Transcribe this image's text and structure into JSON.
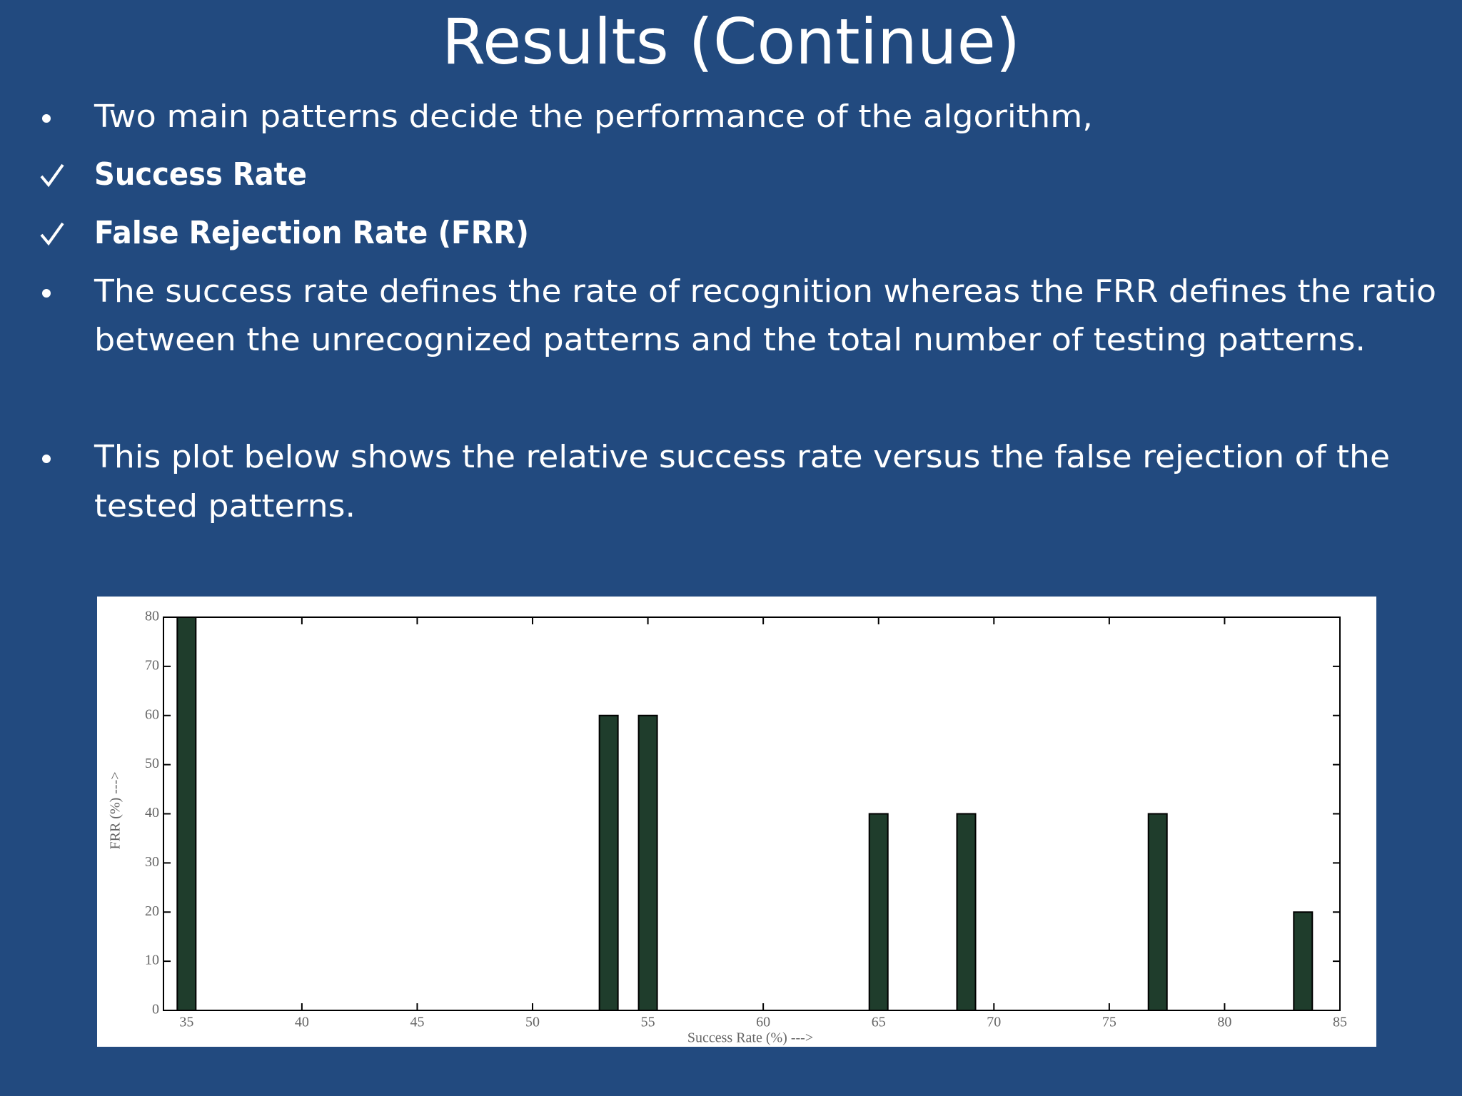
{
  "slide": {
    "title": "Results (Continue)",
    "bullets": [
      {
        "lines": [
          "Two main patterns decide the performance of the algorithm,"
        ]
      },
      {
        "lines": [
          "Success Rate"
        ]
      },
      {
        "lines": [
          "False Rejection Rate (FRR)"
        ]
      },
      {
        "lines": [
          "The success rate defines the rate of recognition whereas the FRR defines the ratio",
          "between the unrecognized patterns and the total number of testing patterns."
        ]
      },
      {
        "lines": [
          "This plot below shows the relative success rate versus the false rejection of the",
          "tested patterns."
        ]
      }
    ]
  },
  "chart_data": {
    "type": "bar",
    "x": [
      35,
      53.3,
      55,
      65,
      68.8,
      77.1,
      83.4
    ],
    "values": [
      80,
      60,
      60,
      40,
      40,
      40,
      20
    ],
    "color": "#1f3d2c",
    "xlabel": "Success Rate (%) --->",
    "ylabel": "FRR (%) --->",
    "xlim": [
      34,
      85
    ],
    "xticks": [
      35,
      40,
      45,
      50,
      55,
      60,
      65,
      70,
      75,
      80,
      85
    ],
    "ylim": [
      0,
      80
    ],
    "yticks": [
      0,
      10,
      20,
      30,
      40,
      50,
      60,
      70,
      80
    ]
  }
}
